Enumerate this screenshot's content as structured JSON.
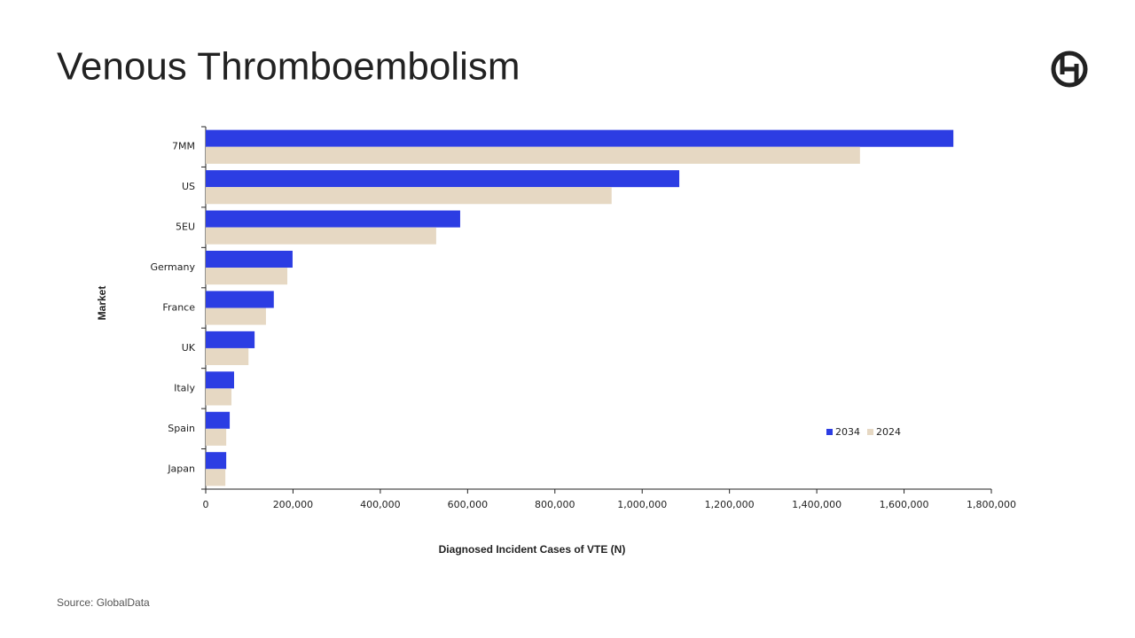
{
  "chart_data": {
    "type": "hbar",
    "title": "Venous Thromboembolism",
    "x_label": "Diagnosed Incident Cases of VTE (N)",
    "y_label": "Market",
    "categories": [
      "7MM",
      "US",
      "5EU",
      "Germany",
      "France",
      "UK",
      "Italy",
      "Spain",
      "Japan"
    ],
    "series": [
      {
        "name": "2034",
        "color": "#2c3de3",
        "values": [
          1713000,
          1085000,
          583000,
          199000,
          156000,
          112000,
          65000,
          55000,
          47000
        ]
      },
      {
        "name": "2024",
        "color": "#e6d8c3",
        "values": [
          1499000,
          930000,
          528000,
          187000,
          138000,
          98000,
          59000,
          47000,
          45000
        ]
      }
    ],
    "xlim": [
      0,
      1800000
    ],
    "xticks": [
      0,
      {
        "value": 200000,
        "label": "200,000"
      },
      {
        "value": 400000,
        "label": "400,000"
      },
      {
        "value": 600000,
        "label": "600,000"
      },
      {
        "value": 800000,
        "label": "800,000"
      },
      {
        "value": 1000000,
        "label": "1,000,000"
      },
      {
        "value": 1200000,
        "label": "1,200,000"
      },
      {
        "value": 1400000,
        "label": "1,400,000"
      },
      {
        "value": 1600000,
        "label": "1,600,000"
      },
      {
        "value": 1800000,
        "label": "1,800,000"
      }
    ],
    "grid": false
  },
  "source": "Source: GlobalData"
}
